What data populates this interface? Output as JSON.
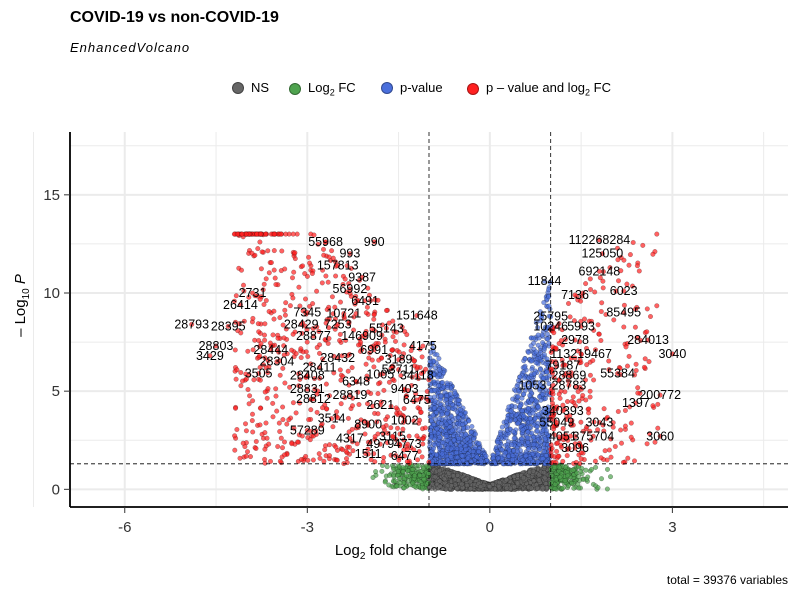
{
  "chart_data": {
    "type": "scatter",
    "title": "COVID-19 vs non-COVID-19",
    "subtitle": "EnhancedVolcano",
    "xlabel_prefix": "Log",
    "xlabel_sub": "2",
    "xlabel_suffix": " fold change",
    "ylabel_prefix": "– Log",
    "ylabel_sub": "10",
    "ylabel_var": "P",
    "xlim": [
      -6.9,
      4.9
    ],
    "ylim": [
      -0.9,
      18.2
    ],
    "x_ticks": [
      -6,
      -3,
      0,
      3
    ],
    "x_tick_labels": [
      "-6",
      "-3",
      "0",
      "3"
    ],
    "y_ticks": [
      0,
      5,
      10,
      15
    ],
    "y_tick_labels": [
      "0",
      "5",
      "10",
      "15"
    ],
    "fc_cutoff": 1,
    "p_cutoff_log10": 1.3,
    "grid": true,
    "legend_position": "top",
    "caption": "total = 39376 variables",
    "legend": [
      {
        "key": "NS",
        "label": "NS",
        "color": "#666666"
      },
      {
        "key": "FC",
        "label_prefix": "Log",
        "label_sub": "2",
        "label_suffix": " FC",
        "color": "#4fa34f"
      },
      {
        "key": "P",
        "label": "p-value",
        "color": "#4a6fdc"
      },
      {
        "key": "PFC",
        "label_prefix": "p – value and log",
        "label_sub": "2",
        "label_suffix": " FC",
        "color": "#ff2020"
      }
    ],
    "labeled_points": [
      {
        "text": "55968",
        "x": -2.7,
        "y": 12.6
      },
      {
        "text": "990",
        "x": -1.9,
        "y": 12.6
      },
      {
        "text": "993",
        "x": -2.3,
        "y": 12.0
      },
      {
        "text": "157813",
        "x": -2.5,
        "y": 11.4
      },
      {
        "text": "9387",
        "x": -2.1,
        "y": 10.8
      },
      {
        "text": "56992",
        "x": -2.3,
        "y": 10.2
      },
      {
        "text": "2731",
        "x": -3.9,
        "y": 10.0
      },
      {
        "text": "6491",
        "x": -2.05,
        "y": 9.6
      },
      {
        "text": "26414",
        "x": -4.1,
        "y": 9.4
      },
      {
        "text": "7345",
        "x": -3.0,
        "y": 9.0
      },
      {
        "text": "10721",
        "x": -2.4,
        "y": 8.95
      },
      {
        "text": "151648",
        "x": -1.2,
        "y": 8.85
      },
      {
        "text": "28793",
        "x": -4.9,
        "y": 8.4
      },
      {
        "text": "28429",
        "x": -3.1,
        "y": 8.4
      },
      {
        "text": "7253",
        "x": -2.5,
        "y": 8.4
      },
      {
        "text": "28395",
        "x": -4.3,
        "y": 8.3
      },
      {
        "text": "55143",
        "x": -1.7,
        "y": 8.2
      },
      {
        "text": "28877",
        "x": -2.9,
        "y": 7.8
      },
      {
        "text": "146909",
        "x": -2.1,
        "y": 7.8
      },
      {
        "text": "28803",
        "x": -4.5,
        "y": 7.3
      },
      {
        "text": "4175",
        "x": -1.1,
        "y": 7.3
      },
      {
        "text": "28444",
        "x": -3.6,
        "y": 7.1
      },
      {
        "text": "6991",
        "x": -1.9,
        "y": 7.1
      },
      {
        "text": "3429",
        "x": -4.6,
        "y": 6.8
      },
      {
        "text": "28432",
        "x": -2.5,
        "y": 6.7
      },
      {
        "text": "28304",
        "x": -3.5,
        "y": 6.5
      },
      {
        "text": "3189",
        "x": -1.5,
        "y": 6.6
      },
      {
        "text": "28411",
        "x": -2.8,
        "y": 6.2
      },
      {
        "text": "53711",
        "x": -1.5,
        "y": 6.1
      },
      {
        "text": "3505",
        "x": -3.8,
        "y": 5.9
      },
      {
        "text": "28408",
        "x": -3.0,
        "y": 5.8
      },
      {
        "text": "1005",
        "x": -1.8,
        "y": 5.85
      },
      {
        "text": "34118",
        "x": -1.2,
        "y": 5.8
      },
      {
        "text": "6348",
        "x": -2.2,
        "y": 5.5
      },
      {
        "text": "28831",
        "x": -3.0,
        "y": 5.1
      },
      {
        "text": "9403",
        "x": -1.4,
        "y": 5.1
      },
      {
        "text": "28819",
        "x": -2.3,
        "y": 4.8
      },
      {
        "text": "28812",
        "x": -2.9,
        "y": 4.6
      },
      {
        "text": "6475",
        "x": -1.2,
        "y": 4.55
      },
      {
        "text": "2621",
        "x": -1.8,
        "y": 4.3
      },
      {
        "text": "3514",
        "x": -2.6,
        "y": 3.6
      },
      {
        "text": "1002",
        "x": -1.4,
        "y": 3.5
      },
      {
        "text": "8900",
        "x": -2.0,
        "y": 3.3
      },
      {
        "text": "57289",
        "x": -3.0,
        "y": 3.0
      },
      {
        "text": "3115",
        "x": -1.6,
        "y": 2.7
      },
      {
        "text": "4317",
        "x": -2.3,
        "y": 2.6
      },
      {
        "text": "4979",
        "x": -1.8,
        "y": 2.3
      },
      {
        "text": "4773",
        "x": -1.35,
        "y": 2.3
      },
      {
        "text": "1511",
        "x": -2.0,
        "y": 1.8
      },
      {
        "text": "6477",
        "x": -1.4,
        "y": 1.7
      },
      {
        "text": "112268284",
        "x": 1.8,
        "y": 12.7
      },
      {
        "text": "125050",
        "x": 1.85,
        "y": 12.0
      },
      {
        "text": "692148",
        "x": 1.8,
        "y": 11.1
      },
      {
        "text": "11844",
        "x": 0.9,
        "y": 10.6
      },
      {
        "text": "6023",
        "x": 2.2,
        "y": 10.1
      },
      {
        "text": "7136",
        "x": 1.4,
        "y": 9.9
      },
      {
        "text": "85495",
        "x": 2.2,
        "y": 9.0
      },
      {
        "text": "25795",
        "x": 1.0,
        "y": 8.8
      },
      {
        "text": "10246",
        "x": 1.0,
        "y": 8.3
      },
      {
        "text": "5993",
        "x": 1.5,
        "y": 8.3
      },
      {
        "text": "2978",
        "x": 1.4,
        "y": 7.6
      },
      {
        "text": "284013",
        "x": 2.6,
        "y": 7.6
      },
      {
        "text": "113219467",
        "x": 1.5,
        "y": 6.9
      },
      {
        "text": "3040",
        "x": 3.0,
        "y": 6.9
      },
      {
        "text": "79187",
        "x": 1.2,
        "y": 6.3
      },
      {
        "text": "28869",
        "x": 1.3,
        "y": 5.8
      },
      {
        "text": "55384",
        "x": 2.1,
        "y": 5.9
      },
      {
        "text": "1053",
        "x": 0.7,
        "y": 5.3
      },
      {
        "text": "28783",
        "x": 1.3,
        "y": 5.3
      },
      {
        "text": "200772",
        "x": 2.8,
        "y": 4.8
      },
      {
        "text": "1397",
        "x": 2.4,
        "y": 4.4
      },
      {
        "text": "340393",
        "x": 1.2,
        "y": 4.0
      },
      {
        "text": "55049",
        "x": 1.1,
        "y": 3.4
      },
      {
        "text": "3043",
        "x": 1.8,
        "y": 3.4
      },
      {
        "text": "4051",
        "x": 1.2,
        "y": 2.7
      },
      {
        "text": "375704",
        "x": 1.7,
        "y": 2.7
      },
      {
        "text": "3060",
        "x": 2.8,
        "y": 2.7
      },
      {
        "text": "3096",
        "x": 1.4,
        "y": 2.1
      }
    ]
  }
}
